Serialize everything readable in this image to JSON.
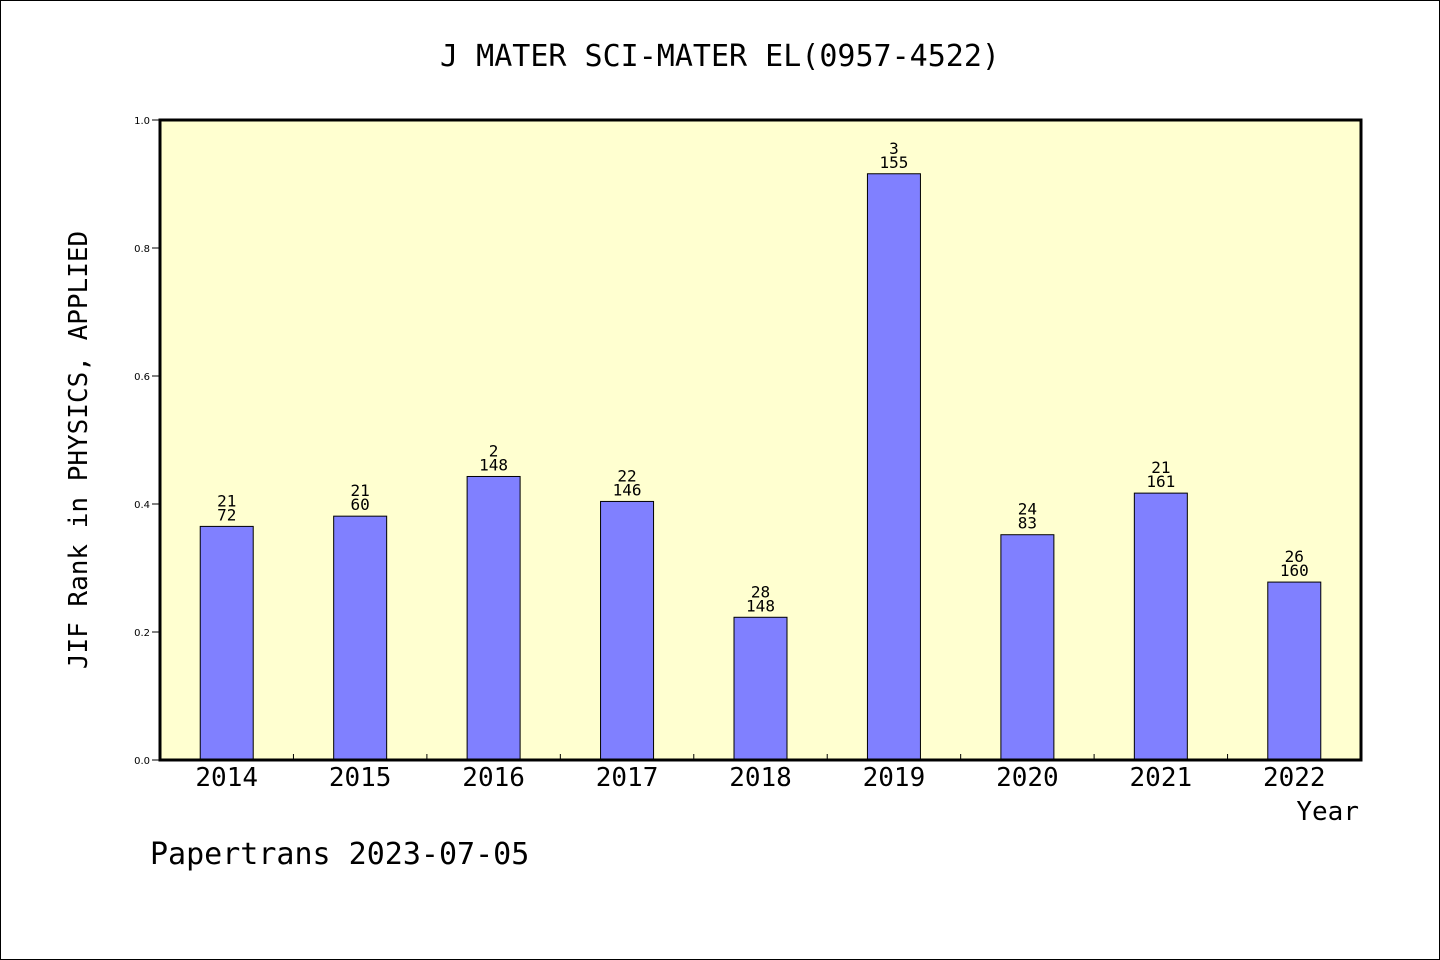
{
  "chart_data": {
    "type": "bar",
    "title": "J MATER SCI-MATER EL(0957-4522)",
    "xlabel": "Year",
    "ylabel": "JIF Rank in PHYSICS, APPLIED",
    "ylim": [
      0,
      1.0
    ],
    "yticks": [
      "0.0",
      "0.2",
      "0.4",
      "0.6",
      "0.8",
      "1.0"
    ],
    "categories": [
      "2014",
      "2015",
      "2016",
      "2017",
      "2018",
      "2019",
      "2020",
      "2021",
      "2022"
    ],
    "values": [
      0.365,
      0.381,
      0.443,
      0.404,
      0.223,
      0.916,
      0.352,
      0.417,
      0.278
    ],
    "labels": [
      {
        "rank": "21",
        "total": "72"
      },
      {
        "rank": "21",
        "total": "60"
      },
      {
        "rank": "2",
        "total": "148"
      },
      {
        "rank": "22",
        "total": "146"
      },
      {
        "rank": "28",
        "total": "148"
      },
      {
        "rank": "3",
        "total": "155"
      },
      {
        "rank": "24",
        "total": "83"
      },
      {
        "rank": "21",
        "total": "161"
      },
      {
        "rank": "26",
        "total": "160"
      }
    ],
    "grid": false,
    "bar_color": "#8080ff",
    "plot_background": "#ffffd0"
  },
  "footer": "Papertrans 2023-07-05"
}
